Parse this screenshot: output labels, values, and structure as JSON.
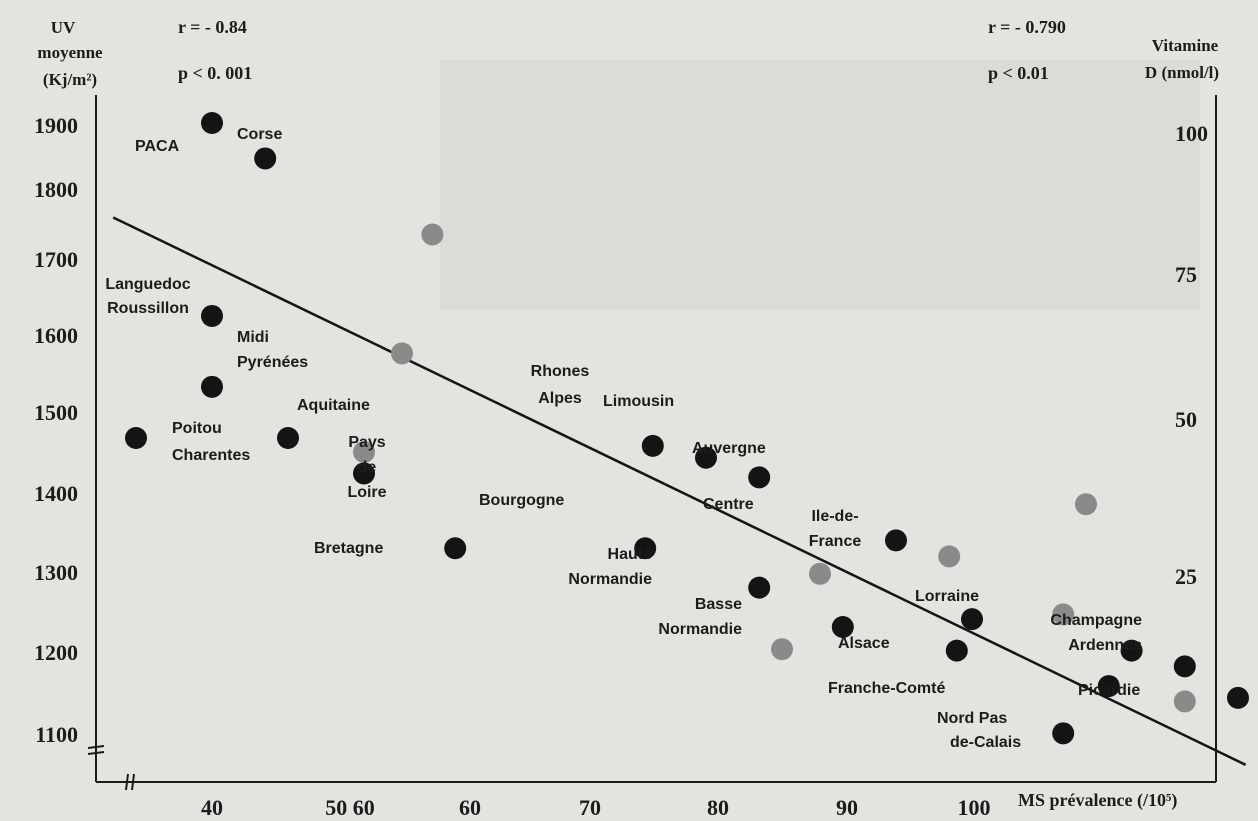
{
  "chart_data": {
    "type": "scatter",
    "left_axis": {
      "label_lines": [
        "UV",
        "moyenne",
        "(Kj/m²)"
      ],
      "ticks": [
        "1900",
        "1800",
        "1700",
        "1600",
        "1500",
        "1400",
        "1300",
        "1200",
        "1100"
      ],
      "range": [
        1100,
        1900
      ]
    },
    "right_axis": {
      "label_lines": [
        "Vitamine",
        "D (nmol/l)"
      ],
      "ticks": [
        "100",
        "75",
        "50",
        "25"
      ]
    },
    "x_axis": {
      "label": "MS prévalence (/10⁵)",
      "ticks": [
        "40",
        "50 60",
        "60",
        "70",
        "80",
        "90",
        "100"
      ]
    },
    "stats_left": {
      "r": "r = - 0.84",
      "p": "p < 0. 001"
    },
    "stats_right": {
      "r": "r = - 0.790",
      "p": "p < 0.01"
    },
    "regions": [
      {
        "name": "PACA",
        "x": 40,
        "uv": 1900
      },
      {
        "name": "Corse",
        "x": 43.5,
        "uv": 1855
      },
      {
        "name": "Languedoc Roussillon",
        "x": 40,
        "uv": 1655
      },
      {
        "name": "Midi Pyrénées",
        "x": 40,
        "uv": 1565
      },
      {
        "name": "Poitou Charentes",
        "x": 35,
        "uv": 1500
      },
      {
        "name": "Aquitaine",
        "x": 45,
        "uv": 1500
      },
      {
        "name": "Pays de Loire",
        "x": 50,
        "uv": 1455
      },
      {
        "name": "Bretagne",
        "x": 56,
        "uv": 1360
      },
      {
        "name": "Rhones Alpes",
        "x": 69,
        "uv": 1490
      },
      {
        "name": "Limousin",
        "x": 72.5,
        "uv": 1475
      },
      {
        "name": "Auvergne",
        "x": 76,
        "uv": 1450
      },
      {
        "name": "Bourgogne",
        "x": 68.5,
        "uv": 1360
      },
      {
        "name": "Haute Normandie",
        "x": 76,
        "uv": 1310
      },
      {
        "name": "Basse Normandie",
        "x": 81.5,
        "uv": 1260
      },
      {
        "name": "Centre",
        "x": 85,
        "uv": 1370
      },
      {
        "name": "Ile-de-France",
        "x": 90,
        "uv": 1270
      },
      {
        "name": "Alsace",
        "x": 89,
        "uv": 1230
      },
      {
        "name": "Lorraine",
        "x": 100.5,
        "uv": 1230
      },
      {
        "name": "Champagne Ardennes",
        "x": 104,
        "uv": 1210
      },
      {
        "name": "Franche-Comté",
        "x": 99,
        "uv": 1185
      },
      {
        "name": "Picardie",
        "x": 107.5,
        "uv": 1170
      },
      {
        "name": "Nord Pas de-Calais",
        "x": 96,
        "uv": 1125
      }
    ],
    "vitamin_d_points": [
      {
        "x": 54.5,
        "vitd": 82.5
      },
      {
        "x": 52.5,
        "vitd": 62
      },
      {
        "x": 50,
        "vitd": 45
      },
      {
        "x": 97.5,
        "vitd": 36
      },
      {
        "x": 88.5,
        "vitd": 27
      },
      {
        "x": 80,
        "vitd": 24
      },
      {
        "x": 96,
        "vitd": 17
      },
      {
        "x": 77.5,
        "vitd": 11
      },
      {
        "x": 104,
        "vitd": 2
      }
    ],
    "regression_line": {
      "x1": 33.5,
      "uv1": 1780,
      "x2": 108,
      "uv2": 1085
    },
    "colors": {
      "uv_points": "#141414",
      "vitamin_d_points": "#8a8a8a",
      "line": "#151515"
    }
  }
}
